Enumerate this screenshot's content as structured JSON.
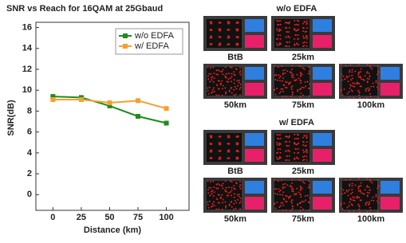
{
  "chart_data": {
    "type": "line",
    "title": "SNR vs Reach for 16QAM at 25Gbaud",
    "x_label": "Distance (km)",
    "y_label": "SNR(dB)",
    "x": [
      0,
      25,
      50,
      75,
      100
    ],
    "series": [
      {
        "name": "w/o EDFA",
        "color": "#1e8c1e",
        "values": [
          9.4,
          9.3,
          8.5,
          7.5,
          6.85
        ]
      },
      {
        "name": "w/ EDFA",
        "color": "#f5a030",
        "values": [
          9.1,
          9.1,
          8.8,
          9.0,
          8.25
        ]
      }
    ],
    "xlim": [
      -15,
      120
    ],
    "xticks": [
      0,
      25,
      50,
      75,
      100
    ],
    "ylim": [
      -1.5,
      16.5
    ],
    "yticks": [
      0,
      2,
      4,
      6,
      8,
      10,
      12,
      14,
      16
    ],
    "grid": false,
    "legend": "upper right"
  },
  "panels": [
    {
      "title": "w/o EDFA",
      "labels": [
        "BtB",
        "25km",
        "50km",
        "75km",
        "100km"
      ]
    },
    {
      "title": "w/ EDFA",
      "labels": [
        "BtB",
        "25km",
        "50km",
        "75km",
        "100km"
      ]
    }
  ]
}
